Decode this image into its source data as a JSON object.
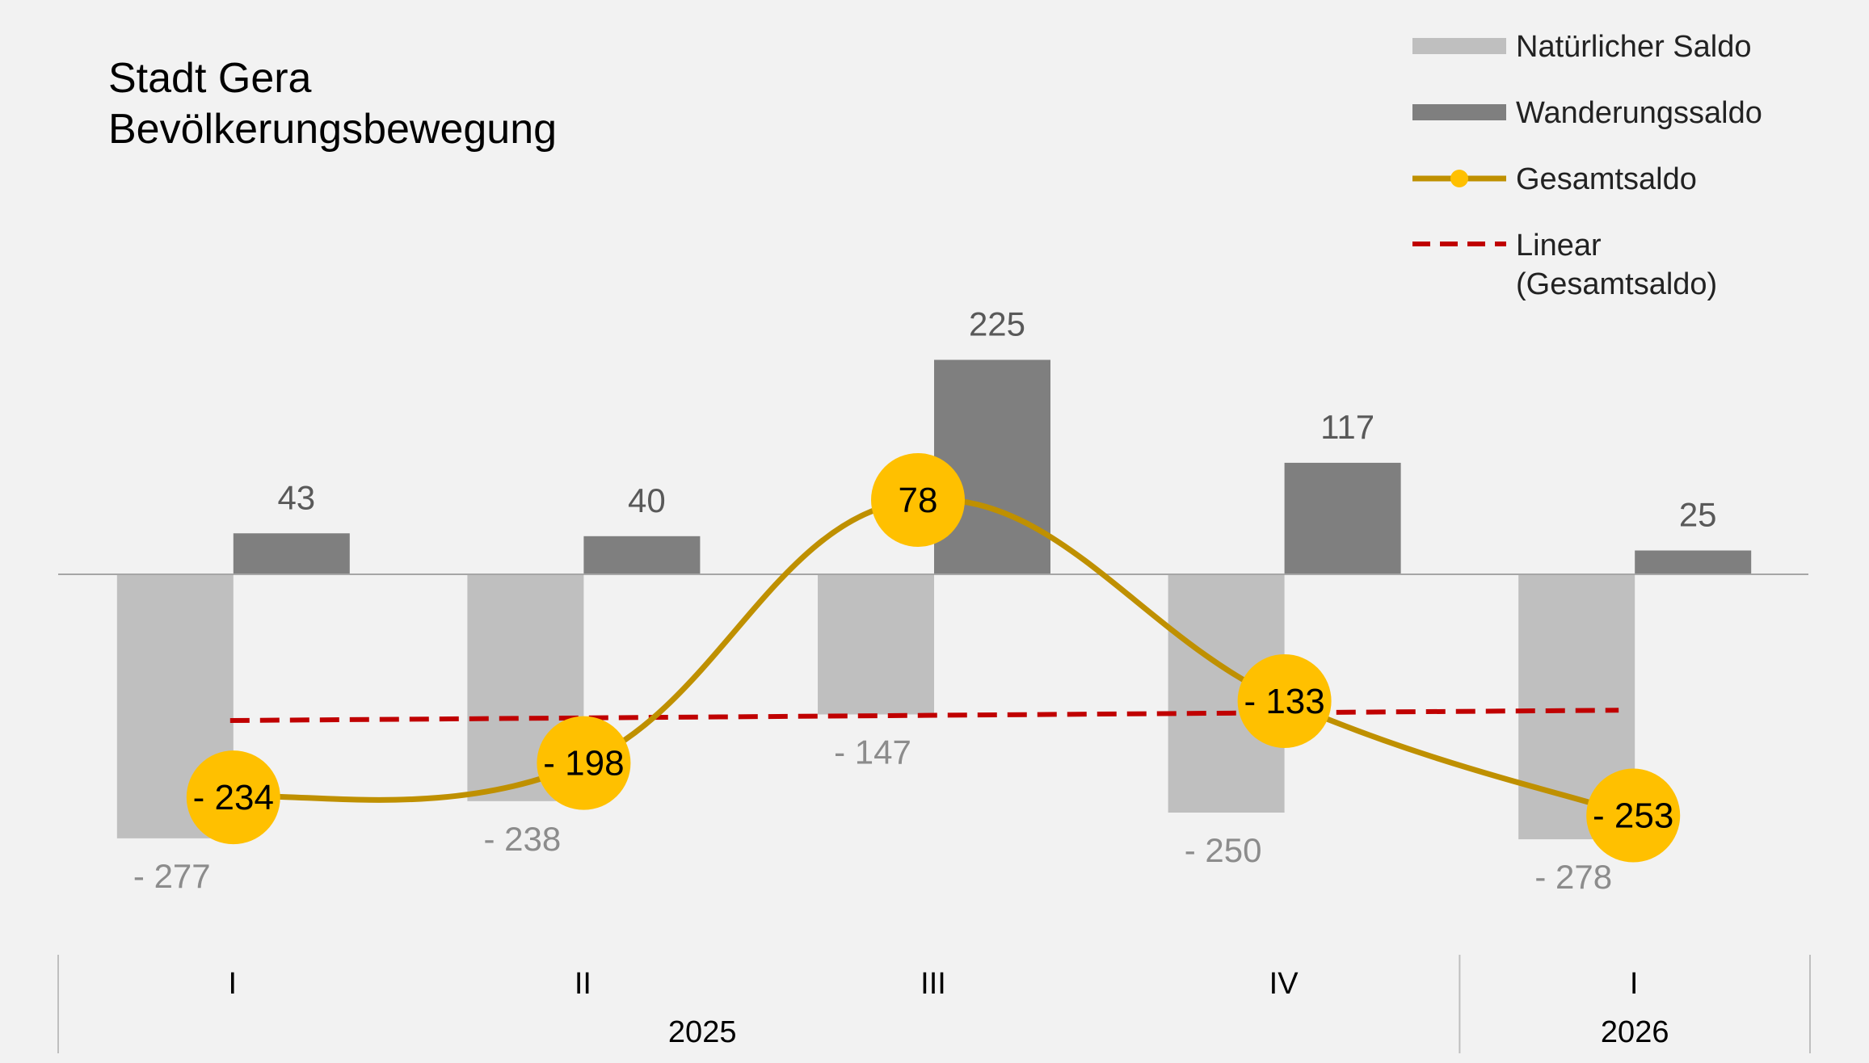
{
  "chart_data": {
    "type": "bar",
    "title": "Stadt Gera",
    "subtitle": "Bevölkerungsbewegung",
    "categories": [
      "I",
      "II",
      "III",
      "IV",
      "I"
    ],
    "groups": [
      {
        "label": "2025",
        "count": 4
      },
      {
        "label": "2026",
        "count": 1
      }
    ],
    "series": [
      {
        "name": "Natürlicher Saldo",
        "type": "bar",
        "color": "#bfbfbf",
        "values": [
          -277,
          -238,
          -147,
          -250,
          -278
        ],
        "labels": [
          "- 277",
          "- 238",
          "- 147",
          "- 250",
          "- 278"
        ]
      },
      {
        "name": "Wanderungssaldo",
        "type": "bar",
        "color": "#7f7f7f",
        "values": [
          43,
          40,
          225,
          117,
          25
        ],
        "labels": [
          "43",
          "40",
          "225",
          "117",
          "25"
        ]
      },
      {
        "name": "Gesamtsaldo",
        "type": "line",
        "color": "#bf9000",
        "marker_color": "#ffc000",
        "values": [
          -234,
          -198,
          78,
          -133,
          -253
        ],
        "labels": [
          "- 234",
          "- 198",
          "78",
          "- 133",
          "- 253"
        ]
      },
      {
        "name": "Linear",
        "name_line2": "(Gesamtsaldo)",
        "type": "trendline",
        "color": "#c00000",
        "style": "dashed"
      }
    ],
    "legend": "top-right",
    "grid": false
  }
}
